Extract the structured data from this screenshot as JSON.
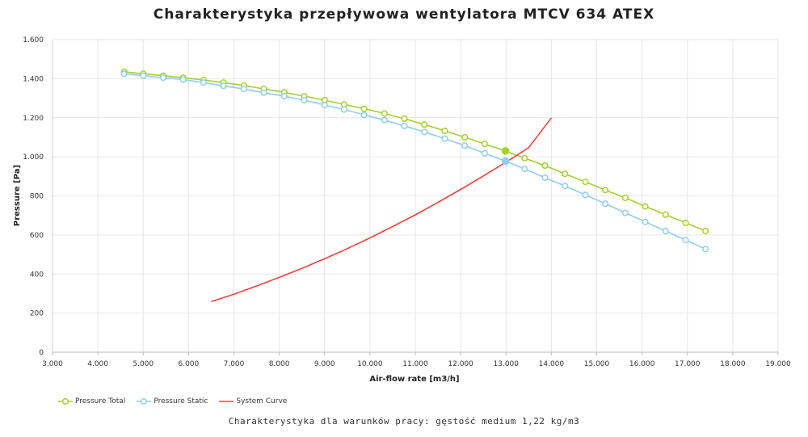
{
  "chart_data": {
    "type": "line",
    "title": "Charakterystyka przepływowa wentylatora MTCV 634 ATEX",
    "xlabel": "Air-flow rate [m3/h]",
    "ylabel": "Pressure [Pa]",
    "xlim": [
      3000,
      19000
    ],
    "ylim": [
      0,
      1600
    ],
    "x_ticks": [
      3000,
      4000,
      5000,
      6000,
      7000,
      8000,
      9000,
      10000,
      11000,
      12000,
      13000,
      14000,
      15000,
      16000,
      17000,
      18000,
      19000
    ],
    "x_tick_labels": [
      "3.000",
      "4.000",
      "5.000",
      "6.000",
      "7.000",
      "8.000",
      "9.000",
      "10.000",
      "11.000",
      "12.000",
      "13.000",
      "14.000",
      "15.000",
      "16.000",
      "17.000",
      "18.000",
      "19.000"
    ],
    "y_ticks": [
      0,
      200,
      400,
      600,
      800,
      1000,
      1200,
      1400,
      1600
    ],
    "y_tick_labels": [
      "0",
      "200",
      "400",
      "600",
      "800",
      "1.000",
      "1.200",
      "1.400",
      "1.600"
    ],
    "grid": true,
    "legend_position": "bottom-left",
    "series": [
      {
        "name": "Pressure Total",
        "color": "#a6d12c",
        "marker": "hollow-circle",
        "x": [
          4580,
          5000,
          5440,
          5880,
          6330,
          6770,
          7220,
          7660,
          8110,
          8550,
          9000,
          9430,
          9870,
          10320,
          10760,
          11200,
          11650,
          12090,
          12530,
          12980,
          13410,
          13860,
          14300,
          14750,
          15190,
          15630,
          16070,
          16520,
          16960,
          17400
        ],
        "y": [
          1435,
          1425,
          1415,
          1405,
          1393,
          1380,
          1365,
          1348,
          1330,
          1310,
          1290,
          1268,
          1246,
          1222,
          1195,
          1165,
          1133,
          1100,
          1066,
          1030,
          993,
          955,
          913,
          872,
          830,
          790,
          746,
          704,
          662,
          620
        ]
      },
      {
        "name": "Pressure Static",
        "color": "#8ecff0",
        "marker": "hollow-circle",
        "x": [
          4580,
          5000,
          5440,
          5880,
          6330,
          6770,
          7220,
          7660,
          8110,
          8550,
          9000,
          9430,
          9870,
          10320,
          10760,
          11200,
          11650,
          12090,
          12530,
          12980,
          13410,
          13860,
          14300,
          14750,
          15190,
          15630,
          16070,
          16520,
          16960,
          17400
        ],
        "y": [
          1425,
          1415,
          1405,
          1395,
          1380,
          1363,
          1347,
          1328,
          1310,
          1290,
          1265,
          1242,
          1215,
          1188,
          1158,
          1127,
          1093,
          1057,
          1018,
          978,
          938,
          893,
          851,
          805,
          760,
          713,
          667,
          620,
          574,
          528
        ]
      },
      {
        "name": "System Curve",
        "color": "#f0423c",
        "marker": "none",
        "x": [
          6500,
          7000,
          7500,
          8000,
          8500,
          9000,
          9500,
          10000,
          10500,
          11000,
          11500,
          12000,
          12500,
          13000,
          13500,
          14000
        ],
        "y": [
          259,
          297,
          339,
          383,
          429,
          478,
          530,
          585,
          643,
          703,
          767,
          833,
          902,
          973,
          1047,
          1200
        ]
      }
    ],
    "operating_points": [
      {
        "series": "Pressure Total",
        "x": 12990,
        "y": 1030
      },
      {
        "series": "Pressure Static",
        "x": 12990,
        "y": 978
      }
    ]
  },
  "caption": "Charakterystyka dla warunków pracy: gęstość medium 1,22 kg/m3"
}
